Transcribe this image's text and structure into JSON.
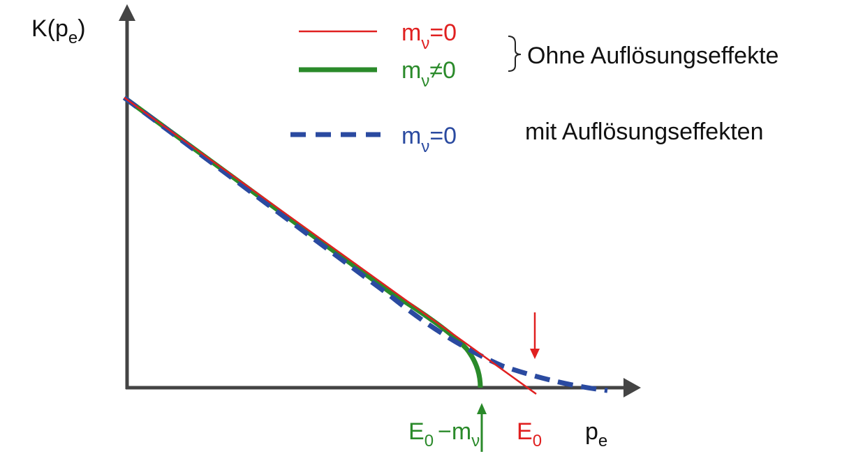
{
  "axes": {
    "y_label": {
      "base": "K(p",
      "sub": "e",
      "rest": ")"
    },
    "x_label": {
      "base": "p",
      "sub": "e"
    }
  },
  "legend": [
    {
      "base": "m",
      "sub": "ν",
      "rest": "=0"
    },
    {
      "base": "m",
      "sub": "ν",
      "rest": "≠0"
    },
    {
      "base": "m",
      "sub": "ν",
      "rest": "=0"
    }
  ],
  "groups": [
    "Ohne Auflösungseffekte",
    "mit Auflösungseffekten"
  ],
  "markers": {
    "e0_minus_m": {
      "base": "E",
      "sub": "0",
      "mid": "−m",
      "sub2": "ν"
    },
    "e0": {
      "base": "E",
      "sub": "0"
    }
  }
}
